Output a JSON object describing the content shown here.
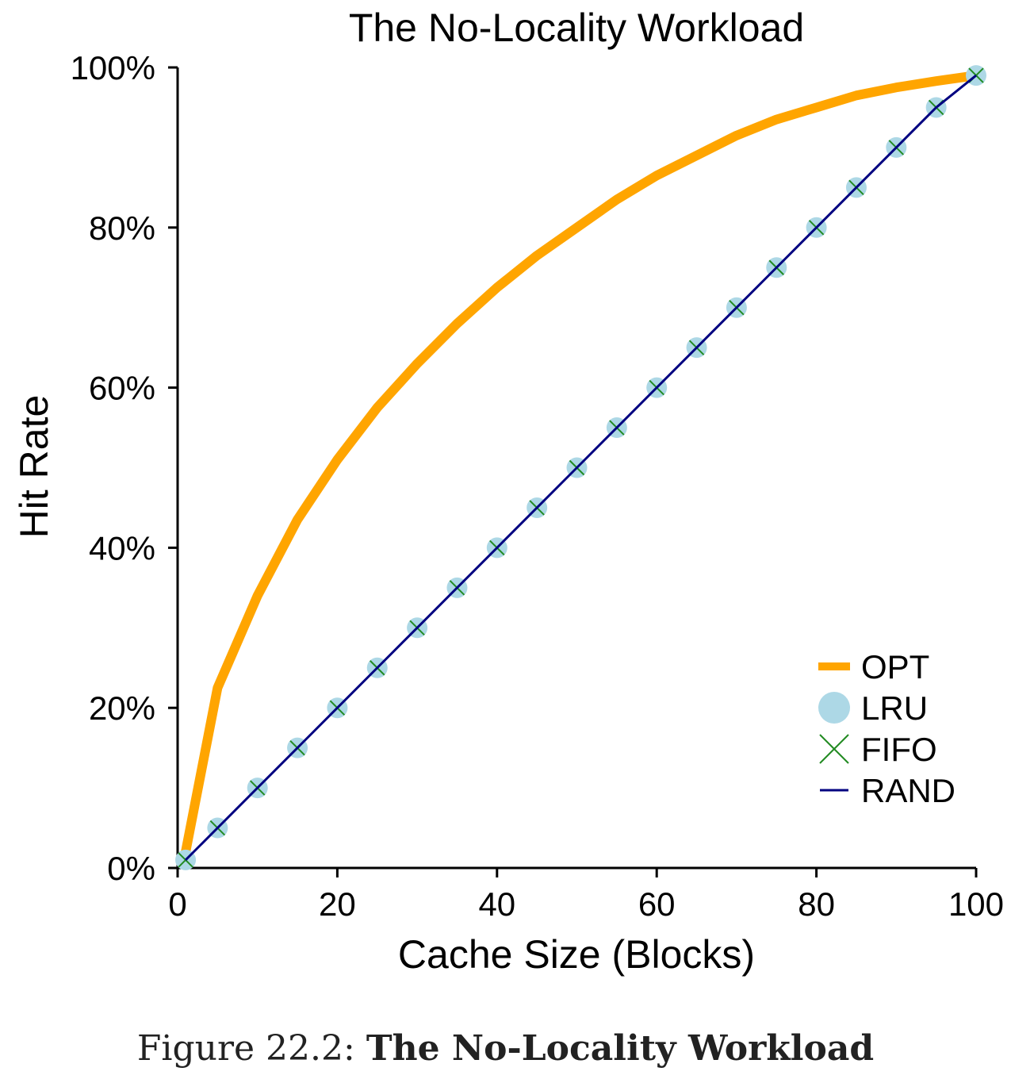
{
  "caption": {
    "prefix": "Figure 22.2:",
    "title": "The No-Locality Workload"
  },
  "chart_data": {
    "type": "line",
    "title": "The No-Locality Workload",
    "xlabel": "Cache Size (Blocks)",
    "ylabel": "Hit Rate",
    "xlim": [
      0,
      100
    ],
    "ylim": [
      0,
      100
    ],
    "x_ticks": [
      "0",
      "20",
      "40",
      "60",
      "80",
      "100"
    ],
    "x_tick_values": [
      0,
      20,
      40,
      60,
      80,
      100
    ],
    "y_ticks": [
      "0%",
      "20%",
      "40%",
      "60%",
      "80%",
      "100%"
    ],
    "y_tick_values": [
      0,
      20,
      40,
      60,
      80,
      100
    ],
    "grid": false,
    "legend_position": "bottom-right",
    "x": [
      1,
      5,
      10,
      15,
      20,
      25,
      30,
      35,
      40,
      45,
      50,
      55,
      60,
      65,
      70,
      75,
      80,
      85,
      90,
      95,
      100
    ],
    "series": [
      {
        "name": "OPT",
        "style": "thick-line",
        "color": "#FFA500",
        "values": [
          2,
          22.5,
          34,
          43.5,
          51,
          57.5,
          63,
          68,
          72.5,
          76.5,
          80,
          83.5,
          86.5,
          89,
          91.5,
          93.5,
          95,
          96.5,
          97.5,
          98.3,
          99
        ]
      },
      {
        "name": "LRU",
        "style": "circle-markers",
        "color": "#ADD8E6",
        "values": [
          1,
          5,
          10,
          15,
          20,
          25,
          30,
          35,
          40,
          45,
          50,
          55,
          60,
          65,
          70,
          75,
          80,
          85,
          90,
          95,
          99
        ]
      },
      {
        "name": "FIFO",
        "style": "x-markers",
        "color": "#228B22",
        "values": [
          1,
          5,
          10,
          15,
          20,
          25,
          30,
          35,
          40,
          45,
          50,
          55,
          60,
          65,
          70,
          75,
          80,
          85,
          90,
          95,
          99
        ]
      },
      {
        "name": "RAND",
        "style": "thin-line",
        "color": "#000080",
        "values": [
          1,
          5,
          10,
          15,
          20,
          25,
          30,
          35,
          40,
          45,
          50,
          55,
          60,
          65,
          70,
          75,
          80,
          85,
          90,
          95,
          99
        ]
      }
    ]
  }
}
